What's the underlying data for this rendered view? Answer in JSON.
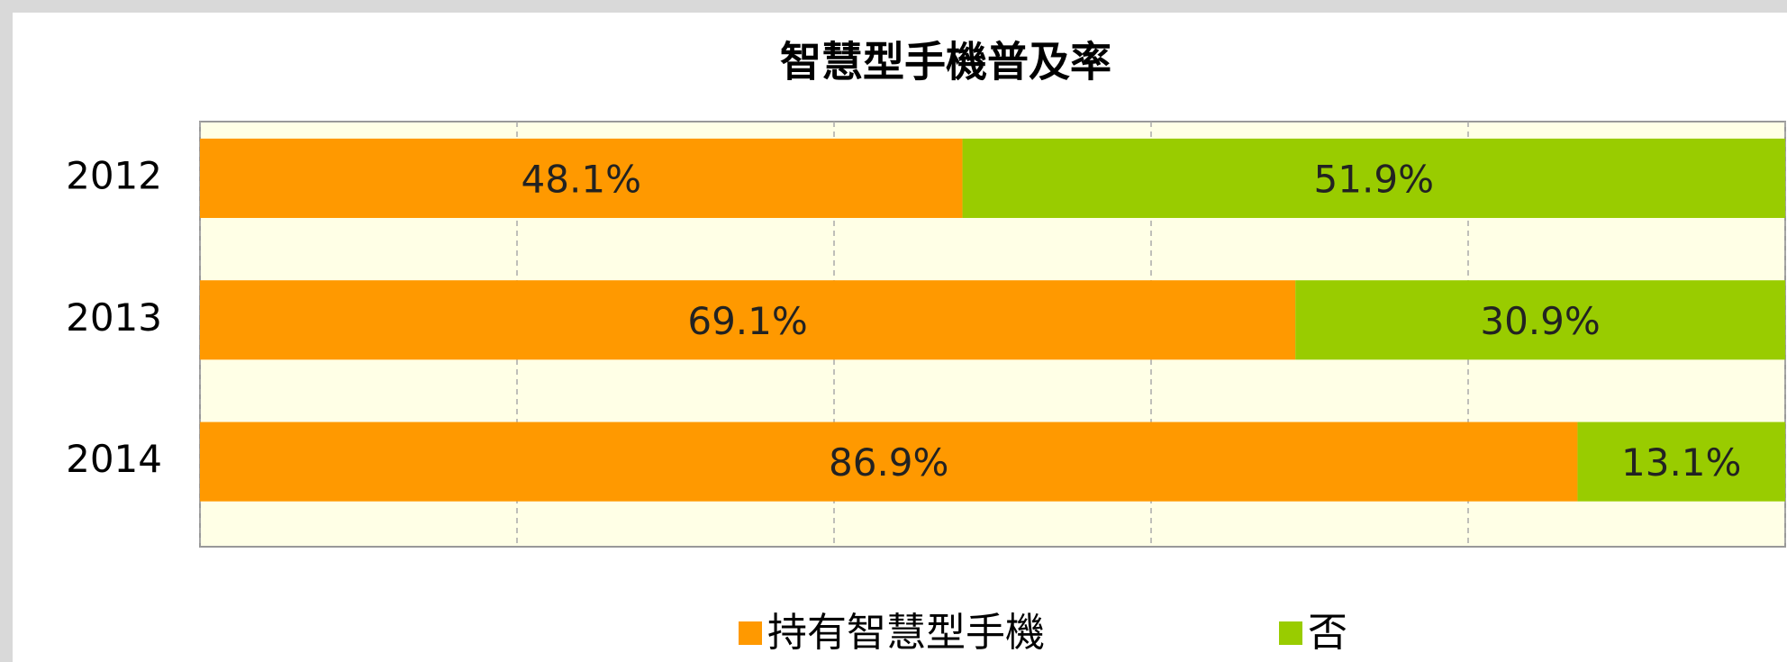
{
  "chart_data": {
    "type": "stacked_barh",
    "title": "智慧型手機普及率",
    "categories": [
      "2012",
      "2013",
      "2014"
    ],
    "series": [
      {
        "name": "持有智慧型手機",
        "color": "#ff9900",
        "values": [
          48.1,
          69.1,
          86.9
        ],
        "value_labels": [
          "48.1%",
          "69.1%",
          "86.9%"
        ]
      },
      {
        "name": "否",
        "color": "#99cc00",
        "values": [
          51.9,
          30.9,
          13.1
        ],
        "value_labels": [
          "51.9%",
          "30.9%",
          "13.1%"
        ]
      }
    ],
    "xlim": [
      0,
      100
    ],
    "xticks": [
      0,
      20,
      40,
      60,
      80,
      100
    ],
    "grid": true,
    "legend": "bottom"
  }
}
